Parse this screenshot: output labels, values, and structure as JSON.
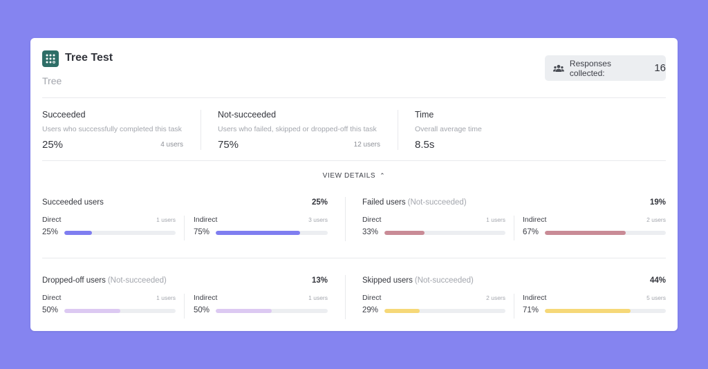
{
  "header": {
    "title": "Tree Test",
    "subtitle": "Tree",
    "responses_label": "Responses collected:",
    "responses_count": "16"
  },
  "stats": [
    {
      "title": "Succeeded",
      "desc": "Users who successfully completed this task",
      "value": "25%",
      "users": "4 users"
    },
    {
      "title": "Not-succeeded",
      "desc": "Users who failed, skipped or dropped-off this task",
      "value": "75%",
      "users": "12 users"
    },
    {
      "title": "Time",
      "desc": "Overall average time",
      "value": "8.5s",
      "users": ""
    }
  ],
  "view_details_label": "VIEW DETAILS",
  "groups": [
    {
      "title": "Succeeded users",
      "qualifier": "",
      "pct": "25%",
      "color": "#7f7ef0",
      "subs": [
        {
          "label": "Direct",
          "users": "1 users",
          "pct": "25%",
          "fill": 0.25
        },
        {
          "label": "Indirect",
          "users": "3 users",
          "pct": "75%",
          "fill": 0.75
        }
      ]
    },
    {
      "title": "Failed users",
      "qualifier": "(Not-succeeded)",
      "pct": "19%",
      "color": "#c98b96",
      "subs": [
        {
          "label": "Direct",
          "users": "1 users",
          "pct": "33%",
          "fill": 0.33
        },
        {
          "label": "Indirect",
          "users": "2 users",
          "pct": "67%",
          "fill": 0.67
        }
      ]
    },
    {
      "title": "Dropped-off users",
      "qualifier": "(Not-succeeded)",
      "pct": "13%",
      "color": "#dcc9f2",
      "subs": [
        {
          "label": "Direct",
          "users": "1 users",
          "pct": "50%",
          "fill": 0.5
        },
        {
          "label": "Indirect",
          "users": "1 users",
          "pct": "50%",
          "fill": 0.5
        }
      ]
    },
    {
      "title": "Skipped users",
      "qualifier": "(Not-succeeded)",
      "pct": "44%",
      "color": "#f6d878",
      "subs": [
        {
          "label": "Direct",
          "users": "2 users",
          "pct": "29%",
          "fill": 0.29
        },
        {
          "label": "Indirect",
          "users": "5 users",
          "pct": "71%",
          "fill": 0.71
        }
      ]
    }
  ],
  "icons": {
    "logo": "tree-logo-icon",
    "responses": "people-icon",
    "view_details": "chevron-up-icon"
  }
}
